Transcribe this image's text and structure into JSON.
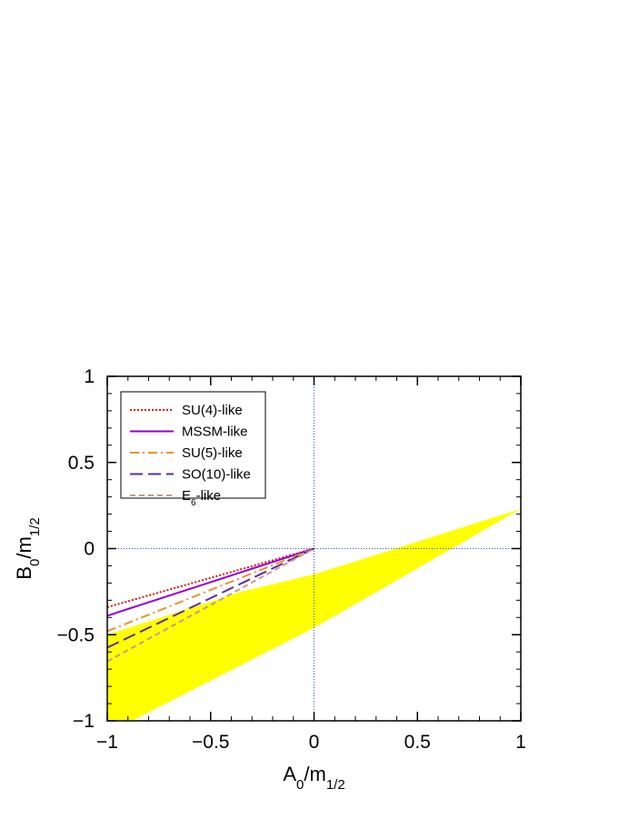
{
  "chart_data": {
    "type": "line",
    "xlabel": [
      "A",
      "0",
      "/m",
      "1/2"
    ],
    "ylabel": [
      "B",
      "0",
      "/m",
      "1/2"
    ],
    "x": [
      -1,
      0
    ],
    "series": [
      {
        "name": [
          "SU(4)-like"
        ],
        "color": "#e8140c",
        "dash": "2,2",
        "values": [
          -0.34,
          0
        ]
      },
      {
        "name": [
          "MSSM-like"
        ],
        "color": "#9400d3",
        "dash": "none",
        "values": [
          -0.39,
          0
        ]
      },
      {
        "name": [
          "SU(5)-like"
        ],
        "color": "#f0902a",
        "dash": "10,4,2,4",
        "values": [
          -0.48,
          0
        ]
      },
      {
        "name": [
          "SO(10)-like"
        ],
        "color": "#5a2ea6",
        "dash": "14,6",
        "values": [
          -0.575,
          0
        ]
      },
      {
        "name": [
          "E",
          "6",
          "-like"
        ],
        "color": "#c89890",
        "dash": "6,4",
        "values": [
          -0.655,
          0
        ]
      }
    ],
    "region": {
      "color": "#ffff00",
      "x": [
        -1,
        -0.35,
        0,
        1,
        0,
        -0.88,
        -1
      ],
      "y": [
        -0.5,
        -0.25,
        -0.15,
        0.23,
        -0.46,
        -1,
        -1
      ]
    },
    "zero_lines": true,
    "zero_line_color": "#3050e0",
    "xlim": [
      -1,
      1
    ],
    "ylim": [
      -1,
      1
    ],
    "xticks": [
      {
        "value": -1,
        "label": "−1"
      },
      {
        "value": -0.5,
        "label": "−0.5"
      },
      0,
      0.5,
      1
    ],
    "yticks": [
      {
        "value": -1,
        "label": "−1"
      },
      {
        "value": -0.5,
        "label": "−0.5"
      },
      0,
      0.5,
      1
    ],
    "minor_step": 0.1,
    "legend": "upper left"
  }
}
